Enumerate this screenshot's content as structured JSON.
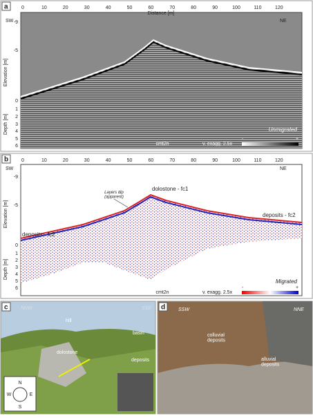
{
  "panel_a": {
    "label": "a",
    "x_axis_label": "Distance [m]",
    "x_ticks": [
      "0",
      "10",
      "20",
      "30",
      "40",
      "50",
      "60",
      "70",
      "80",
      "90",
      "100",
      "110",
      "120"
    ],
    "elevation_label": "Elevation [m]",
    "elevation_ticks": [
      "-9",
      "-5"
    ],
    "depth_label": "Depth [m]",
    "depth_ticks": [
      "0",
      "1",
      "2",
      "3",
      "4",
      "5",
      "6"
    ],
    "left_dir": "SW",
    "right_dir": "NE",
    "profile": "cmt2n",
    "exaggeration": "v. exagg. 2.5x",
    "processing": "Unmigrated",
    "scale_min": "-",
    "scale_max": "+"
  },
  "panel_b": {
    "label": "b",
    "x_ticks": [
      "0",
      "10",
      "20",
      "30",
      "40",
      "50",
      "60",
      "70",
      "80",
      "90",
      "100",
      "110",
      "120"
    ],
    "elevation_label": "Elevation [m]",
    "elevation_ticks": [
      "-9",
      "-5",
      "0"
    ],
    "depth_label": "Depth [m]",
    "depth_ticks": [
      "1",
      "2",
      "3",
      "4",
      "5",
      "6"
    ],
    "left_dir": "SW",
    "right_dir": "NE",
    "annotations": [
      "deposits - fc2",
      "Layers dip\n(apparent)",
      "dolostone - fc1",
      "deposits - fc2"
    ],
    "profile": "cmt2n",
    "exaggeration": "v. exagg. 2.5x",
    "processing": "Migrated",
    "scale_min": "-",
    "scale_max": "+"
  },
  "panel_c": {
    "label": "c",
    "left_dir": "NNW",
    "right_dir": "SSE",
    "labels": [
      "hill",
      "basin",
      "deposits",
      "dolostone"
    ],
    "compass": [
      "N",
      "E",
      "S",
      "W"
    ]
  },
  "panel_d": {
    "label": "d",
    "left_dir": "SSW",
    "right_dir": "NNE",
    "labels": [
      "colluvial\ndeposits",
      "alluvial\ndeposits"
    ]
  }
}
